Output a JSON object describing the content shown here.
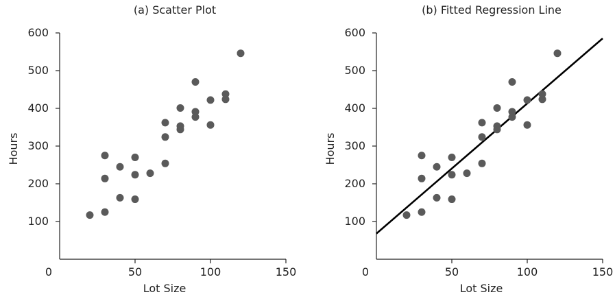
{
  "chart_data": [
    {
      "type": "scatter",
      "title": "(a) Scatter Plot",
      "xlabel": "Lot Size",
      "ylabel": "Hours",
      "xlim": [
        0,
        150
      ],
      "ylim": [
        0,
        600
      ],
      "xticks": [
        0,
        50,
        100,
        150
      ],
      "yticks": [
        100,
        200,
        300,
        400,
        500,
        600
      ],
      "grid": false,
      "points_color": "#5a5a5a",
      "series": [
        {
          "x": [
            20,
            30,
            30,
            30,
            40,
            40,
            50,
            50,
            50,
            60,
            70,
            70,
            70,
            80,
            80,
            80,
            90,
            90,
            90,
            100,
            100,
            110,
            110,
            120
          ],
          "y": [
            117,
            125,
            214,
            275,
            163,
            245,
            159,
            224,
            270,
            228,
            254,
            324,
            362,
            344,
            353,
            401,
            377,
            391,
            470,
            356,
            422,
            424,
            438,
            546
          ]
        }
      ]
    },
    {
      "type": "scatter",
      "title": "(b) Fitted Regression Line",
      "xlabel": "Lot Size",
      "ylabel": "Hours",
      "xlim": [
        0,
        150
      ],
      "ylim": [
        0,
        600
      ],
      "xticks": [
        0,
        50,
        100,
        150
      ],
      "yticks": [
        100,
        200,
        300,
        400,
        500,
        600
      ],
      "grid": false,
      "points_color": "#5a5a5a",
      "line_color": "#000000",
      "series": [
        {
          "x": [
            20,
            30,
            30,
            30,
            40,
            40,
            50,
            50,
            50,
            60,
            70,
            70,
            70,
            80,
            80,
            80,
            90,
            90,
            90,
            100,
            100,
            110,
            110,
            120
          ],
          "y": [
            117,
            125,
            214,
            275,
            163,
            245,
            159,
            224,
            270,
            228,
            254,
            324,
            362,
            344,
            353,
            401,
            377,
            391,
            470,
            356,
            422,
            424,
            438,
            546
          ]
        }
      ],
      "regression_line": {
        "intercept": 68,
        "slope": 3.45
      }
    }
  ]
}
